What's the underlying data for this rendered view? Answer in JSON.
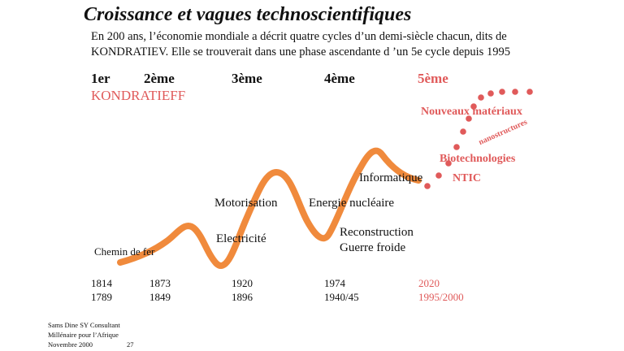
{
  "title": "Croissance et vagues technoscientifiques",
  "subtitle_line1": "En 200 ans, l’économie mondiale a décrit quatre cycles d’un demi-siècle chacun, dits de",
  "subtitle_line2": "KONDRATIEV.  Elle se trouverait dans une phase ascendante d ’un 5e cycle depuis 1995",
  "cycles": [
    "1er",
    "2ème",
    "3ème",
    "4ème",
    "5ème"
  ],
  "kondratieff_label": "KONDRATIEFF",
  "labels": {
    "chemin": "Chemin de fer",
    "motorisation": "Motorisation",
    "electricite": "Electricité",
    "energie": "Energie nucléaire",
    "reconstruction": "Reconstruction",
    "guerre": "Guerre froide",
    "informatique": "Informatique"
  },
  "fifth_wave_labels": {
    "materiaux": "Nouveaux  matériaux",
    "nano": "nanostructures",
    "biotech": "Biotechnologies",
    "ntic": "NTIC"
  },
  "years_top": [
    "1814",
    "1873",
    "1920",
    "1974",
    "2020"
  ],
  "years_bottom": [
    "1789",
    "1849",
    "1896",
    "1940/45",
    "1995/2000"
  ],
  "footer": {
    "line1": "Sams  Dine  SY Consultant",
    "line2": "Millénaire  pour l’Afrique",
    "line3": "Novembre  2000",
    "page": "27"
  },
  "colors": {
    "wave": "#f08a3c",
    "accent": "#e05a5a",
    "text": "#111111"
  }
}
